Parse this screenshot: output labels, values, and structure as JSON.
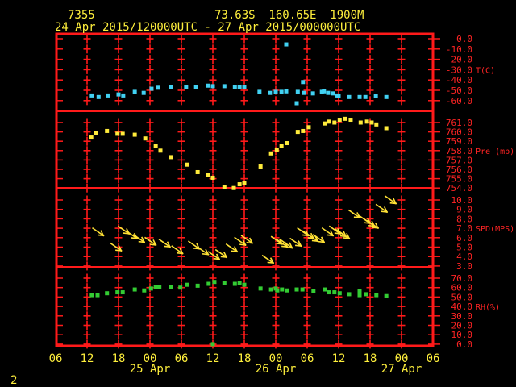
{
  "header": {
    "station_id": "7355",
    "location": "73.63S  160.65E  1900M",
    "period": "24 Apr 2015/120000UTC - 27 Apr 2015/000000UTC"
  },
  "footer": {
    "page_number": "2"
  },
  "colors": {
    "background": "#000000",
    "grid_red": "#ff1a1a",
    "label_red": "#ff2424",
    "header_yellow": "#fdee3c",
    "temp_cyan": "#41d1f2",
    "pressure_yellow": "#ffeb3b",
    "wind_yellow": "#ffe135",
    "humidity_green": "#33cc33"
  },
  "chart_data": {
    "type": "scatter",
    "x_axis": {
      "hours_total": 72,
      "tick_interval_hours": 6,
      "tick_labels": [
        "06",
        "12",
        "18",
        "00",
        "06",
        "12",
        "18",
        "00",
        "06",
        "12",
        "18",
        "00",
        "06"
      ],
      "date_labels": [
        {
          "text": "25 Apr",
          "hour": 18
        },
        {
          "text": "26 Apr",
          "hour": 42
        },
        {
          "text": "27 Apr",
          "hour": 66
        }
      ]
    },
    "panels": [
      {
        "name": "temperature",
        "unit_label": "T(C)",
        "tick_labels": [
          "0.0",
          "-10.0",
          "-20.0",
          "-30.0",
          "-40.0",
          "-50.0",
          "-60.0"
        ],
        "vmax": 0,
        "vmin": -60,
        "marker": "square",
        "color_key": "temp_cyan",
        "points": [
          [
            6.9,
            -55
          ],
          [
            8.2,
            -56.5
          ],
          [
            10,
            -55
          ],
          [
            12,
            -54
          ],
          [
            12.9,
            -55
          ],
          [
            15.1,
            -51.5
          ],
          [
            16.8,
            -52.5
          ],
          [
            18.3,
            -48.5
          ],
          [
            19.5,
            -47.5
          ],
          [
            22,
            -47
          ],
          [
            24.9,
            -47
          ],
          [
            26.8,
            -47
          ],
          [
            29.1,
            -45.5
          ],
          [
            30,
            -46
          ],
          [
            32.2,
            -46
          ],
          [
            34.2,
            -47
          ],
          [
            35.1,
            -47
          ],
          [
            36,
            -47
          ],
          [
            38.9,
            -51.5
          ],
          [
            40.9,
            -52.5
          ],
          [
            42,
            -51.5
          ],
          [
            43.1,
            -51.5
          ],
          [
            44,
            -51
          ],
          [
            44,
            -5.5
          ],
          [
            46,
            -62.5
          ],
          [
            46.2,
            -51.5
          ],
          [
            47.2,
            -42
          ],
          [
            47.4,
            -52.5
          ],
          [
            49.1,
            -53
          ],
          [
            50.8,
            -51.5
          ],
          [
            51.2,
            -51
          ],
          [
            52,
            -52.5
          ],
          [
            52.9,
            -53
          ],
          [
            53.7,
            -55
          ],
          [
            54,
            -55.5
          ],
          [
            56,
            -56.5
          ],
          [
            58,
            -56.5
          ],
          [
            59.1,
            -56.5
          ],
          [
            61.1,
            -55.5
          ],
          [
            63.1,
            -56.5
          ]
        ]
      },
      {
        "name": "pressure",
        "unit_label": "Pre (mb)",
        "tick_labels": [
          "761.0",
          "760.0",
          "759.0",
          "758.0",
          "757.0",
          "756.0",
          "755.0",
          "754.0"
        ],
        "vmax": 761,
        "vmin": 754,
        "marker": "square",
        "color_key": "pressure_yellow",
        "points": [
          [
            6.8,
            759.4
          ],
          [
            7.7,
            759.9
          ],
          [
            9.8,
            760.1
          ],
          [
            11.8,
            759.8
          ],
          [
            12.8,
            759.8
          ],
          [
            15.1,
            759.7
          ],
          [
            17.1,
            759.3
          ],
          [
            19.1,
            758.5
          ],
          [
            20,
            758
          ],
          [
            22,
            757.3
          ],
          [
            25.1,
            756.5
          ],
          [
            27.1,
            755.7
          ],
          [
            29.1,
            755.4
          ],
          [
            30,
            755.1
          ],
          [
            32.2,
            754.1
          ],
          [
            34,
            754
          ],
          [
            35.1,
            754.4
          ],
          [
            36,
            754.5
          ],
          [
            39.1,
            756.3
          ],
          [
            41.1,
            757.7
          ],
          [
            42.2,
            758.1
          ],
          [
            43.1,
            758.5
          ],
          [
            44.2,
            758.8
          ],
          [
            46.2,
            760
          ],
          [
            47.2,
            760.1
          ],
          [
            48.3,
            760.5
          ],
          [
            51.4,
            760.9
          ],
          [
            52.2,
            761.1
          ],
          [
            53.2,
            761
          ],
          [
            54.2,
            761.3
          ],
          [
            55.2,
            761.4
          ],
          [
            56.3,
            761.3
          ],
          [
            58.2,
            761
          ],
          [
            59.4,
            761.1
          ],
          [
            60.3,
            761
          ],
          [
            61.2,
            760.8
          ],
          [
            63.1,
            760.4
          ]
        ]
      },
      {
        "name": "wind_speed",
        "unit_label": "SPD(MPS)",
        "tick_labels": [
          "10.0",
          "9.0",
          "8.0",
          "7.0",
          "6.0",
          "5.0",
          "4.0",
          "3.0"
        ],
        "vmax": 10,
        "vmin": 3,
        "marker": "arrow",
        "color_key": "wind_yellow",
        "points": [
          [
            7.1,
            7
          ],
          [
            10.5,
            5.4
          ],
          [
            12,
            7.2
          ],
          [
            13.5,
            6.7
          ],
          [
            14.9,
            6.3
          ],
          [
            17.1,
            6
          ],
          [
            19.8,
            5.8
          ],
          [
            22.2,
            5.1
          ],
          [
            25.4,
            5.6
          ],
          [
            27.1,
            5
          ],
          [
            29.2,
            4.5
          ],
          [
            30.6,
            4.7
          ],
          [
            32.6,
            5.3
          ],
          [
            34.2,
            6
          ],
          [
            35.5,
            6.2
          ],
          [
            39.5,
            4.1
          ],
          [
            41.2,
            6.1
          ],
          [
            42.2,
            5.8
          ],
          [
            43.1,
            5.7
          ],
          [
            44.8,
            5.9
          ],
          [
            46.2,
            7
          ],
          [
            47.2,
            6.7
          ],
          [
            48,
            6.4
          ],
          [
            49.2,
            6.3
          ],
          [
            50.9,
            7
          ],
          [
            52.3,
            7.2
          ],
          [
            53.4,
            6.9
          ],
          [
            54,
            6.7
          ],
          [
            56,
            8.9
          ],
          [
            58,
            8.3
          ],
          [
            58.8,
            8
          ],
          [
            59.5,
            7.8
          ],
          [
            61.2,
            9.5
          ],
          [
            62.9,
            10.4
          ]
        ]
      },
      {
        "name": "relative_humidity",
        "unit_label": "RH(%)",
        "tick_labels": [
          "70.0",
          "60.0",
          "50.0",
          "40.0",
          "30.0",
          "20.0",
          "10.0",
          "0.0"
        ],
        "vmax": 70,
        "vmin": 0,
        "marker": "square",
        "color_key": "humidity_green",
        "points": [
          [
            6.9,
            52
          ],
          [
            8,
            52
          ],
          [
            9.8,
            54
          ],
          [
            11.8,
            55
          ],
          [
            12.8,
            55
          ],
          [
            15.1,
            58
          ],
          [
            16.9,
            57
          ],
          [
            18.2,
            59
          ],
          [
            19.1,
            61
          ],
          [
            19.8,
            61
          ],
          [
            22,
            61
          ],
          [
            23.8,
            60
          ],
          [
            25.1,
            63
          ],
          [
            27.1,
            62
          ],
          [
            29.2,
            64
          ],
          [
            30,
            0
          ],
          [
            30.3,
            66
          ],
          [
            32.2,
            65
          ],
          [
            34.2,
            64
          ],
          [
            35.1,
            65
          ],
          [
            36,
            63
          ],
          [
            39.1,
            59
          ],
          [
            41.1,
            58
          ],
          [
            42,
            59
          ],
          [
            42.3,
            57
          ],
          [
            43.2,
            58
          ],
          [
            44.2,
            57
          ],
          [
            46,
            58
          ],
          [
            47.1,
            58
          ],
          [
            49.2,
            56
          ],
          [
            51.4,
            58
          ],
          [
            52.2,
            55
          ],
          [
            53.2,
            55
          ],
          [
            54.2,
            54
          ],
          [
            56,
            53
          ],
          [
            58,
            56
          ],
          [
            58,
            52
          ],
          [
            59.2,
            53
          ],
          [
            61.2,
            52
          ],
          [
            63.1,
            51
          ]
        ]
      }
    ]
  }
}
